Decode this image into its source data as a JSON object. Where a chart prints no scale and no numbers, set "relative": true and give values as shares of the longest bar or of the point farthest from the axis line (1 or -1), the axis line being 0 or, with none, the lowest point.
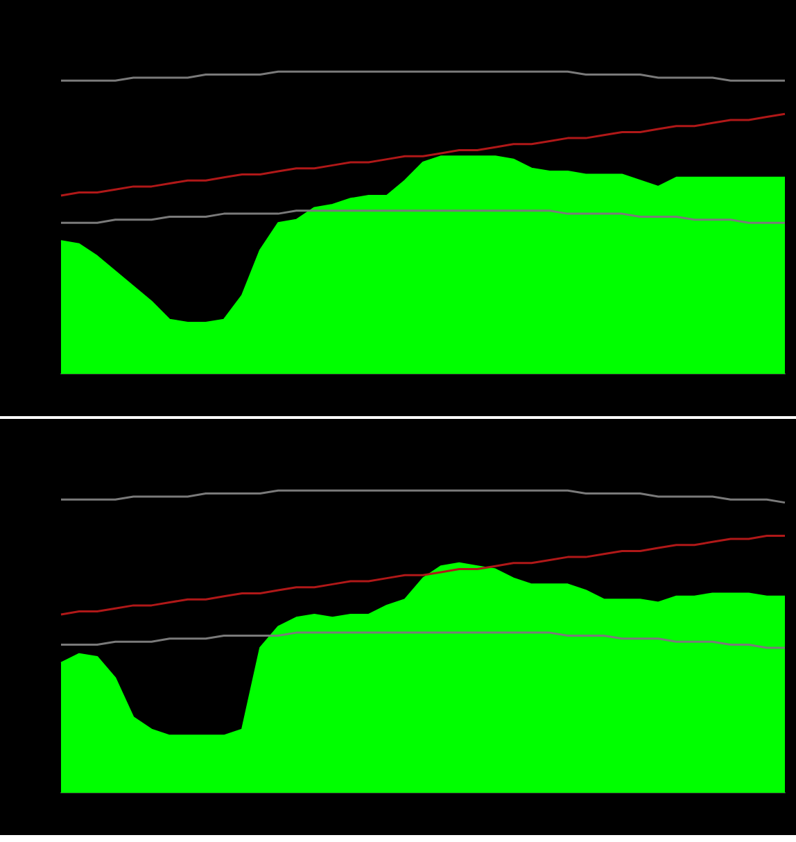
{
  "chart_data": [
    {
      "type": "area",
      "relative": true,
      "legend": false,
      "marker": "none",
      "categories": [
        null,
        null,
        null,
        null,
        null,
        null,
        null,
        null,
        null,
        null,
        null,
        null,
        null,
        null,
        null,
        null,
        null,
        null,
        null,
        null,
        null,
        null,
        null,
        null,
        null,
        null,
        null,
        null,
        null,
        null,
        null,
        null,
        null,
        null,
        null,
        null,
        null,
        null,
        null,
        null,
        null
      ],
      "series": [
        {
          "color": "#00ff00",
          "values": [
            0.44,
            0.43,
            0.39,
            0.34,
            0.29,
            0.24,
            0.18,
            0.17,
            0.17,
            0.18,
            0.26,
            0.41,
            0.5,
            0.51,
            0.55,
            0.56,
            0.58,
            0.59,
            0.59,
            0.64,
            0.7,
            0.72,
            0.72,
            0.72,
            0.72,
            0.71,
            0.68,
            0.67,
            0.67,
            0.66,
            0.66,
            0.66,
            0.64,
            0.62,
            0.65,
            0.65,
            0.65,
            0.65,
            0.65,
            0.65,
            0.65
          ]
        },
        {
          "type": "line",
          "color": "#b01818",
          "values": [
            0.59,
            0.6,
            0.6,
            0.61,
            0.62,
            0.62,
            0.63,
            0.64,
            0.64,
            0.65,
            0.66,
            0.66,
            0.67,
            0.68,
            0.68,
            0.69,
            0.7,
            0.7,
            0.71,
            0.72,
            0.72,
            0.73,
            0.74,
            0.74,
            0.75,
            0.76,
            0.76,
            0.77,
            0.78,
            0.78,
            0.79,
            0.8,
            0.8,
            0.81,
            0.82,
            0.82,
            0.83,
            0.84,
            0.84,
            0.85,
            0.86
          ]
        },
        {
          "type": "line",
          "color": "#7a7a7a",
          "values": [
            0.97,
            0.97,
            0.97,
            0.97,
            0.98,
            0.98,
            0.98,
            0.98,
            0.99,
            0.99,
            0.99,
            0.99,
            1,
            1,
            1,
            1,
            1,
            1,
            1,
            1,
            1,
            1,
            1,
            1,
            1,
            1,
            1,
            1,
            1,
            0.99,
            0.99,
            0.99,
            0.99,
            0.98,
            0.98,
            0.98,
            0.98,
            0.97,
            0.97,
            0.97,
            0.97
          ]
        },
        {
          "type": "line",
          "color": "#7a7a7a",
          "values": [
            0.5,
            0.5,
            0.5,
            0.51,
            0.51,
            0.51,
            0.52,
            0.52,
            0.52,
            0.53,
            0.53,
            0.53,
            0.53,
            0.54,
            0.54,
            0.54,
            0.54,
            0.54,
            0.54,
            0.54,
            0.54,
            0.54,
            0.54,
            0.54,
            0.54,
            0.54,
            0.54,
            0.54,
            0.53,
            0.53,
            0.53,
            0.53,
            0.52,
            0.52,
            0.52,
            0.51,
            0.51,
            0.51,
            0.5,
            0.5,
            0.5
          ]
        }
      ]
    },
    {
      "type": "area",
      "relative": true,
      "legend": false,
      "marker": "none",
      "categories": [
        null,
        null,
        null,
        null,
        null,
        null,
        null,
        null,
        null,
        null,
        null,
        null,
        null,
        null,
        null,
        null,
        null,
        null,
        null,
        null,
        null,
        null,
        null,
        null,
        null,
        null,
        null,
        null,
        null,
        null,
        null,
        null,
        null,
        null,
        null,
        null,
        null,
        null,
        null,
        null,
        null
      ],
      "series": [
        {
          "color": "#00ff00",
          "values": [
            0.43,
            0.46,
            0.45,
            0.38,
            0.25,
            0.21,
            0.19,
            0.19,
            0.19,
            0.19,
            0.21,
            0.48,
            0.55,
            0.58,
            0.59,
            0.58,
            0.59,
            0.59,
            0.62,
            0.64,
            0.71,
            0.75,
            0.76,
            0.75,
            0.74,
            0.71,
            0.69,
            0.69,
            0.69,
            0.67,
            0.64,
            0.64,
            0.64,
            0.63,
            0.65,
            0.65,
            0.66,
            0.66,
            0.66,
            0.65,
            0.65
          ]
        },
        {
          "type": "line",
          "color": "#b01818",
          "values": [
            0.59,
            0.6,
            0.6,
            0.61,
            0.62,
            0.62,
            0.63,
            0.64,
            0.64,
            0.65,
            0.66,
            0.66,
            0.67,
            0.68,
            0.68,
            0.69,
            0.7,
            0.7,
            0.71,
            0.72,
            0.72,
            0.73,
            0.74,
            0.74,
            0.75,
            0.76,
            0.76,
            0.77,
            0.78,
            0.78,
            0.79,
            0.8,
            0.8,
            0.81,
            0.82,
            0.82,
            0.83,
            0.84,
            0.84,
            0.85,
            0.85
          ]
        },
        {
          "type": "line",
          "color": "#7a7a7a",
          "values": [
            0.97,
            0.97,
            0.97,
            0.97,
            0.98,
            0.98,
            0.98,
            0.98,
            0.99,
            0.99,
            0.99,
            0.99,
            1,
            1,
            1,
            1,
            1,
            1,
            1,
            1,
            1,
            1,
            1,
            1,
            1,
            1,
            1,
            1,
            1,
            0.99,
            0.99,
            0.99,
            0.99,
            0.98,
            0.98,
            0.98,
            0.98,
            0.97,
            0.97,
            0.97,
            0.96
          ]
        },
        {
          "type": "line",
          "color": "#7a7a7a",
          "values": [
            0.49,
            0.49,
            0.49,
            0.5,
            0.5,
            0.5,
            0.51,
            0.51,
            0.51,
            0.52,
            0.52,
            0.52,
            0.52,
            0.53,
            0.53,
            0.53,
            0.53,
            0.53,
            0.53,
            0.53,
            0.53,
            0.53,
            0.53,
            0.53,
            0.53,
            0.53,
            0.53,
            0.53,
            0.52,
            0.52,
            0.52,
            0.51,
            0.51,
            0.51,
            0.5,
            0.5,
            0.5,
            0.49,
            0.49,
            0.48,
            0.48
          ]
        }
      ]
    }
  ]
}
